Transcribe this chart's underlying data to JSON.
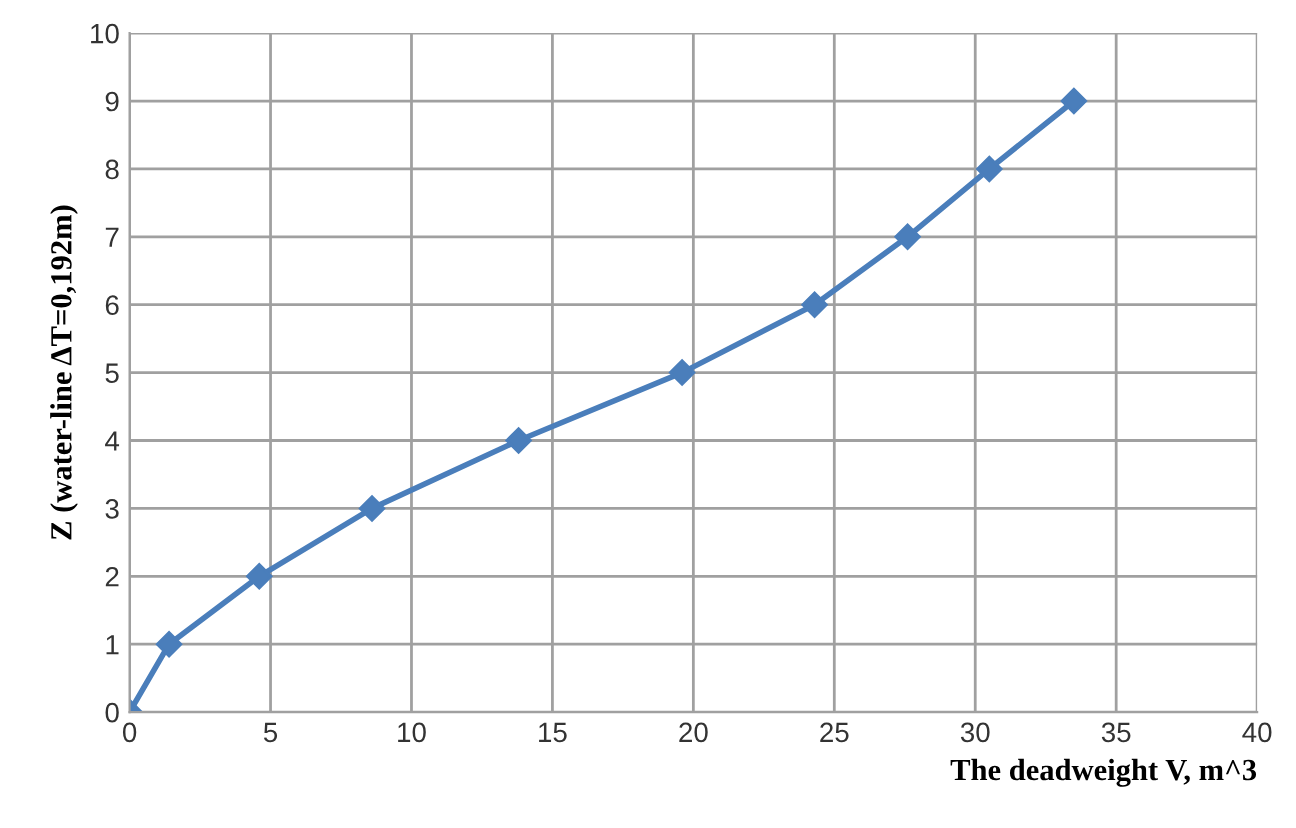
{
  "chart_data": {
    "type": "line",
    "xlabel": "The deadweight V, m^3",
    "ylabel": "Z (water-line ΔT=0,192m)",
    "x": [
      0,
      1.4,
      4.6,
      8.6,
      13.8,
      19.6,
      24.3,
      27.6,
      30.5,
      33.5
    ],
    "series": [
      {
        "color": "#4a7ebb",
        "values": [
          0,
          1,
          2,
          3,
          4,
          5,
          6,
          7,
          8,
          9
        ]
      }
    ],
    "xlim": [
      0,
      40
    ],
    "xticks": [
      0,
      5,
      10,
      15,
      20,
      25,
      30,
      35,
      40
    ],
    "ylim": [
      0,
      10
    ],
    "yticks": [
      0,
      1,
      2,
      3,
      4,
      5,
      6,
      7,
      8,
      9,
      10
    ],
    "grid": true,
    "marker": "diamond",
    "line_style": "solid",
    "legend": false
  }
}
